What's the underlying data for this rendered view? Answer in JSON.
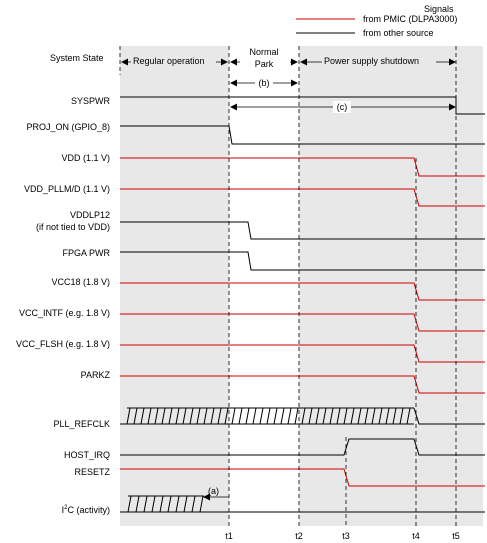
{
  "legend": {
    "heading": "Signals",
    "items": [
      {
        "label": "from PMIC (DLPA3000)",
        "color": "#cc0000"
      },
      {
        "label": "from other source",
        "color": "#000000"
      }
    ]
  },
  "state_row": {
    "label": "System State",
    "phases": [
      "Regular operation",
      "Normal",
      "Park",
      "Power supply shutdown"
    ]
  },
  "signals": [
    "SYSPWR",
    "PROJ_ON (GPIO_8)",
    "VDD (1.1 V)",
    "VDD_PLLM/D (1.1 V)",
    "VDDLP12",
    "(if not tied to VDD)",
    "FPGA PWR",
    "VCC18 (1.8 V)",
    "VCC_INTF (e.g. 1.8 V)",
    "VCC_FLSH (e.g. 1.8 V)",
    "PARKZ",
    "PLL_REFCLK",
    "HOST_IRQ",
    "RESETZ",
    "C (activity)"
  ],
  "i2c_prefix": "I",
  "i2c_sup": "2",
  "annotations": [
    "(b)",
    "(c)",
    "(a)"
  ],
  "time_markers": [
    "t1",
    "t2",
    "t3",
    "t4",
    "t5"
  ],
  "colors": {
    "pmic": "#cc0000",
    "other": "#000000",
    "shade": "#e8e8e8"
  }
}
